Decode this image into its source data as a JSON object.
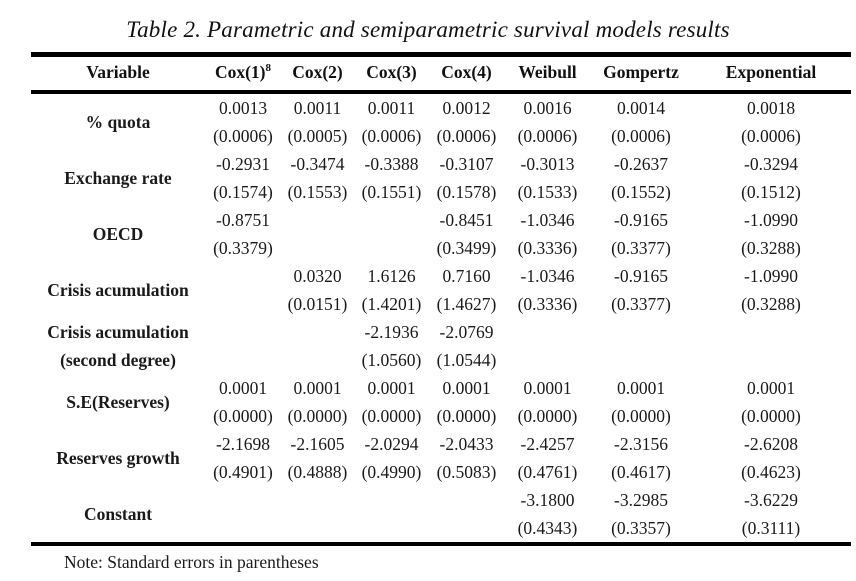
{
  "title": "Table 2. Parametric and semiparametric survival models results",
  "note": "Note: Standard errors in parentheses",
  "header": {
    "variable": "Variable",
    "cox1": "Cox(1)",
    "cox1_footnote": "8",
    "cox2": "Cox(2)",
    "cox3": "Cox(3)",
    "cox4": "Cox(4)",
    "weibull": "Weibull",
    "gompertz": "Gompertz",
    "exponential": "Exponential"
  },
  "rows": [
    {
      "label_lines": [
        "% quota"
      ],
      "coef": [
        "0.0013",
        "0.0011",
        "0.0011",
        "0.0012",
        "0.0016",
        "0.0014",
        "0.0018"
      ],
      "se": [
        "(0.0006)",
        "(0.0005)",
        "(0.0006)",
        "(0.0006)",
        "(0.0006)",
        "(0.0006)",
        "(0.0006)"
      ]
    },
    {
      "label_lines": [
        "Exchange rate"
      ],
      "coef": [
        "-0.2931",
        "-0.3474",
        "-0.3388",
        "-0.3107",
        "-0.3013",
        "-0.2637",
        "-0.3294"
      ],
      "se": [
        "(0.1574)",
        "(0.1553)",
        "(0.1551)",
        "(0.1578)",
        "(0.1533)",
        "(0.1552)",
        "(0.1512)"
      ]
    },
    {
      "label_lines": [
        "OECD"
      ],
      "coef": [
        "-0.8751",
        "",
        "",
        "-0.8451",
        "-1.0346",
        "-0.9165",
        "-1.0990"
      ],
      "se": [
        "(0.3379)",
        "",
        "",
        "(0.3499)",
        "(0.3336)",
        "(0.3377)",
        "(0.3288)"
      ]
    },
    {
      "label_lines": [
        "Crisis acumulation"
      ],
      "coef": [
        "",
        "0.0320",
        "1.6126",
        "0.7160",
        "-1.0346",
        "-0.9165",
        "-1.0990"
      ],
      "se": [
        "",
        "(0.0151)",
        "(1.4201)",
        "(1.4627)",
        "(0.3336)",
        "(0.3377)",
        "(0.3288)"
      ]
    },
    {
      "label_lines": [
        "Crisis acumulation",
        "(second degree)"
      ],
      "coef": [
        "",
        "",
        "-2.1936",
        "-2.0769",
        "",
        "",
        ""
      ],
      "se": [
        "",
        "",
        "(1.0560)",
        "(1.0544)",
        "",
        "",
        ""
      ]
    },
    {
      "label_lines": [
        "S.E(Reserves)"
      ],
      "coef": [
        "0.0001",
        "0.0001",
        "0.0001",
        "0.0001",
        "0.0001",
        "0.0001",
        "0.0001"
      ],
      "se": [
        "(0.0000)",
        "(0.0000)",
        "(0.0000)",
        "(0.0000)",
        "(0.0000)",
        "(0.0000)",
        "(0.0000)"
      ]
    },
    {
      "label_lines": [
        "Reserves growth"
      ],
      "coef": [
        "-2.1698",
        "-2.1605",
        "-2.0294",
        "-2.0433",
        "-2.4257",
        "-2.3156",
        "-2.6208"
      ],
      "se": [
        "(0.4901)",
        "(0.4888)",
        "(0.4990)",
        "(0.5083)",
        "(0.4761)",
        "(0.4617)",
        "(0.4623)"
      ]
    },
    {
      "label_lines": [
        "Constant"
      ],
      "coef": [
        "",
        "",
        "",
        "",
        "-3.1800",
        "-3.2985",
        "-3.6229"
      ],
      "se": [
        "",
        "",
        "",
        "",
        "(0.4343)",
        "(0.3357)",
        "(0.3111)"
      ]
    }
  ]
}
